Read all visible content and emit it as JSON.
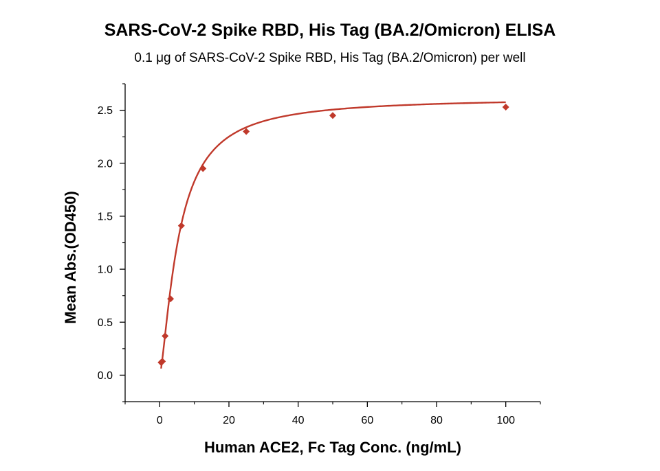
{
  "chart_data": {
    "type": "scatter",
    "title": "SARS-CoV-2 Spike RBD, His Tag (BA.2/Omicron) ELISA",
    "subtitle": "0.1 μg of SARS-CoV-2 Spike RBD, His Tag (BA.2/Omicron) per well",
    "xlabel": "Human ACE2, Fc Tag Conc. (ng/mL)",
    "ylabel": "Mean Abs.(OD450)",
    "xlim": [
      -10,
      110
    ],
    "ylim": [
      -0.25,
      2.75
    ],
    "xticks": [
      "0",
      "20",
      "40",
      "60",
      "80",
      "100"
    ],
    "xtick_values": [
      0,
      20,
      40,
      60,
      80,
      100
    ],
    "yticks": [
      "0.0",
      "0.5",
      "1.0",
      "1.5",
      "2.0",
      "2.5"
    ],
    "ytick_values": [
      0,
      0.5,
      1.0,
      1.5,
      2.0,
      2.5
    ],
    "grid": false,
    "color": "#c0392b",
    "series": [
      {
        "marker": "diamond",
        "points": [
          {
            "x": 0.39,
            "y": 0.12
          },
          {
            "x": 0.78,
            "y": 0.13
          },
          {
            "x": 1.56,
            "y": 0.37
          },
          {
            "x": 3.13,
            "y": 0.72
          },
          {
            "x": 6.25,
            "y": 1.41
          },
          {
            "x": 12.5,
            "y": 1.95
          },
          {
            "x": 25,
            "y": 2.3
          },
          {
            "x": 50,
            "y": 2.45
          },
          {
            "x": 100,
            "y": 2.53
          }
        ],
        "fit": {
          "type": "4PL",
          "bottom": 0.0,
          "top": 2.62,
          "ec50": 5.5,
          "hill": 1.4
        }
      }
    ]
  }
}
